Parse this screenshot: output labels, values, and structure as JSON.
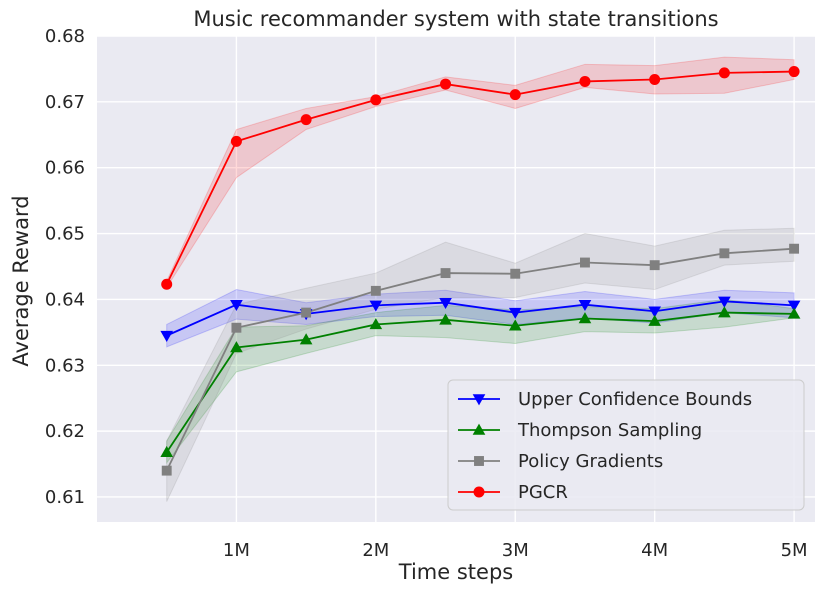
{
  "chart_data": {
    "type": "line",
    "title": "Music recommander system with state transitions",
    "xlabel": "Time steps",
    "ylabel": "Average Reward",
    "x": [
      0.5,
      1,
      1.5,
      2,
      2.5,
      3,
      3.5,
      4,
      4.5,
      5
    ],
    "xlim": [
      0,
      5.15
    ],
    "ylim": [
      0.6062,
      0.68
    ],
    "xticks": [
      1,
      2,
      3,
      4,
      5
    ],
    "xtick_labels": [
      "1M",
      "2M",
      "3M",
      "4M",
      "5M"
    ],
    "yticks": [
      0.61,
      0.62,
      0.63,
      0.64,
      0.65,
      0.66,
      0.67,
      0.68
    ],
    "ytick_labels": [
      "0.61",
      "0.62",
      "0.63",
      "0.64",
      "0.65",
      "0.66",
      "0.67",
      "0.68"
    ],
    "grid": true,
    "legend_position": "bottom-right",
    "series": [
      {
        "name": "Upper Confidence Bounds",
        "color": "#0000ff",
        "marker": "triangle-down",
        "values": [
          0.6345,
          0.6392,
          0.6378,
          0.6391,
          0.6395,
          0.638,
          0.6392,
          0.6382,
          0.6397,
          0.6391
        ],
        "lower": [
          0.6328,
          0.637,
          0.6362,
          0.6374,
          0.6376,
          0.6362,
          0.6372,
          0.6364,
          0.638,
          0.6372
        ],
        "upper": [
          0.6362,
          0.6415,
          0.6395,
          0.6408,
          0.6414,
          0.6398,
          0.6412,
          0.64,
          0.6414,
          0.641
        ]
      },
      {
        "name": "Thompson Sampling",
        "color": "#008000",
        "marker": "triangle-up",
        "values": [
          0.6168,
          0.6327,
          0.6339,
          0.6362,
          0.6369,
          0.636,
          0.6371,
          0.6367,
          0.638,
          0.6378
        ],
        "lower": [
          0.6152,
          0.629,
          0.6318,
          0.6345,
          0.6342,
          0.6333,
          0.6351,
          0.6349,
          0.6358,
          0.6372
        ],
        "upper": [
          0.6185,
          0.6358,
          0.636,
          0.638,
          0.6391,
          0.6384,
          0.6389,
          0.6386,
          0.64,
          0.6386
        ]
      },
      {
        "name": "Policy Gradients",
        "color": "#808080",
        "marker": "square",
        "values": [
          0.614,
          0.6357,
          0.638,
          0.6413,
          0.644,
          0.6439,
          0.6456,
          0.6452,
          0.647,
          0.6477
        ],
        "lower": [
          0.6093,
          0.6318,
          0.6355,
          0.6385,
          0.6403,
          0.6403,
          0.6425,
          0.6415,
          0.6452,
          0.6458
        ],
        "upper": [
          0.6185,
          0.6392,
          0.6417,
          0.644,
          0.6487,
          0.6455,
          0.65,
          0.6481,
          0.6505,
          0.6508
        ]
      },
      {
        "name": "PGCR",
        "color": "#ff0000",
        "marker": "circle",
        "values": [
          0.6423,
          0.664,
          0.6673,
          0.6703,
          0.6727,
          0.6711,
          0.6731,
          0.6734,
          0.6744,
          0.6746
        ],
        "lower": [
          0.6418,
          0.6585,
          0.6658,
          0.6693,
          0.6718,
          0.669,
          0.6722,
          0.6712,
          0.6713,
          0.6734
        ],
        "upper": [
          0.6428,
          0.6658,
          0.669,
          0.6708,
          0.6738,
          0.6725,
          0.6757,
          0.6755,
          0.6768,
          0.6764
        ]
      }
    ]
  }
}
